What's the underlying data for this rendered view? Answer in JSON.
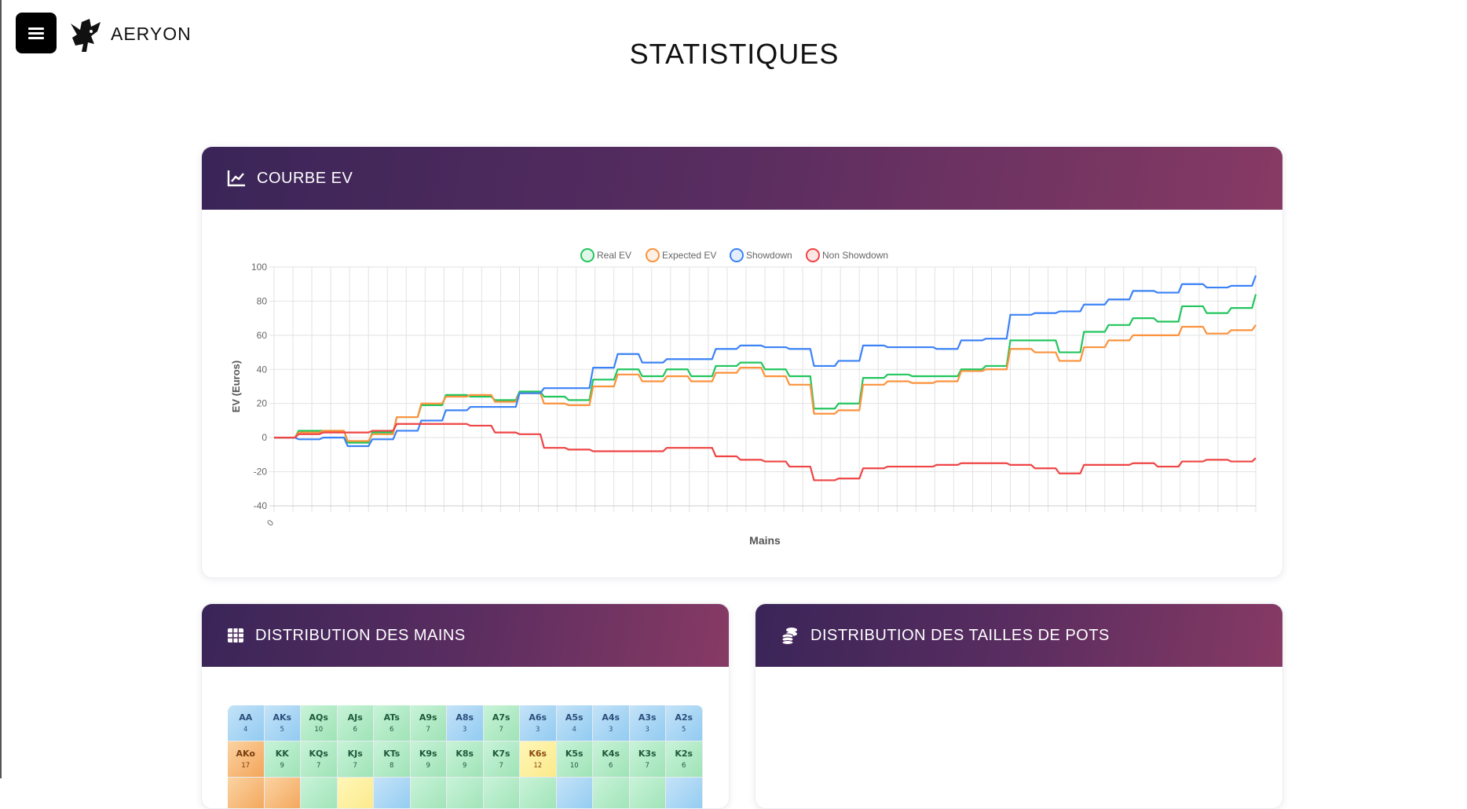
{
  "header": {
    "brand": "AERYON",
    "title": "STATISTIQUES"
  },
  "cards": {
    "ev": {
      "title": "COURBE EV",
      "icon": "chart-line-icon"
    },
    "hands": {
      "title": "DISTRIBUTION DES MAINS",
      "icon": "table-grid-icon"
    },
    "pots": {
      "title": "DISTRIBUTION DES TAILLES DE POTS",
      "icon": "coins-icon"
    }
  },
  "chart_data": {
    "type": "line",
    "xlabel": "Mains",
    "ylabel": "EV (Euros)",
    "ylim": [
      -40,
      100
    ],
    "yticks": [
      100,
      80,
      60,
      40,
      20,
      0,
      -20,
      -40
    ],
    "xtick_labels": [
      "0"
    ],
    "grid": true,
    "legend": "top-center",
    "series": [
      {
        "name": "Real EV",
        "color": "#22c55e",
        "values": [
          0,
          4,
          4,
          -3,
          3,
          12,
          19,
          25,
          24,
          22,
          27,
          24,
          22,
          34,
          40,
          36,
          40,
          36,
          42,
          44,
          40,
          36,
          17,
          20,
          35,
          37,
          36,
          36,
          40,
          42,
          57,
          57,
          50,
          62,
          66,
          70,
          68,
          77,
          73,
          76,
          84
        ]
      },
      {
        "name": "Expected EV",
        "color": "#fb923c",
        "values": [
          0,
          3,
          4,
          -2,
          2,
          12,
          20,
          24,
          25,
          21,
          26,
          20,
          19,
          30,
          37,
          33,
          36,
          33,
          38,
          41,
          36,
          31,
          14,
          16,
          31,
          33,
          32,
          33,
          39,
          40,
          52,
          50,
          45,
          53,
          57,
          60,
          60,
          65,
          61,
          63,
          66
        ]
      },
      {
        "name": "Showdown",
        "color": "#3b82f6",
        "values": [
          0,
          -1,
          0,
          -5,
          -1,
          4,
          10,
          16,
          18,
          18,
          26,
          29,
          29,
          41,
          49,
          44,
          46,
          46,
          52,
          54,
          53,
          52,
          42,
          45,
          54,
          53,
          53,
          52,
          57,
          58,
          72,
          73,
          74,
          78,
          81,
          86,
          85,
          90,
          88,
          89,
          95
        ]
      },
      {
        "name": "Non Showdown",
        "color": "#ef4444",
        "values": [
          0,
          2,
          3,
          3,
          4,
          8,
          8,
          8,
          7,
          3,
          2,
          -6,
          -7,
          -8,
          -8,
          -8,
          -6,
          -6,
          -11,
          -13,
          -14,
          -17,
          -25,
          -24,
          -18,
          -17,
          -17,
          -16,
          -15,
          -15,
          -16,
          -18,
          -21,
          -16,
          -16,
          -15,
          -17,
          -14,
          -13,
          -14,
          -12
        ]
      }
    ]
  },
  "hand_grid": {
    "rows": [
      [
        {
          "h": "AA",
          "c": "4"
        },
        {
          "h": "AKs",
          "c": "5"
        },
        {
          "h": "AQs",
          "c": "10"
        },
        {
          "h": "AJs",
          "c": "6"
        },
        {
          "h": "ATs",
          "c": "6"
        },
        {
          "h": "A9s",
          "c": "7"
        },
        {
          "h": "A8s",
          "c": "3"
        },
        {
          "h": "A7s",
          "c": "7"
        },
        {
          "h": "A6s",
          "c": "3"
        },
        {
          "h": "A5s",
          "c": "4"
        },
        {
          "h": "A4s",
          "c": "3"
        },
        {
          "h": "A3s",
          "c": "3"
        },
        {
          "h": "A2s",
          "c": "5"
        }
      ],
      [
        {
          "h": "AKo",
          "c": "17"
        },
        {
          "h": "KK",
          "c": "9"
        },
        {
          "h": "KQs",
          "c": "7"
        },
        {
          "h": "KJs",
          "c": "7"
        },
        {
          "h": "KTs",
          "c": "8"
        },
        {
          "h": "K9s",
          "c": "9"
        },
        {
          "h": "K8s",
          "c": "9"
        },
        {
          "h": "K7s",
          "c": "7"
        },
        {
          "h": "K6s",
          "c": "12"
        },
        {
          "h": "K5s",
          "c": "10"
        },
        {
          "h": "K4s",
          "c": "6"
        },
        {
          "h": "K3s",
          "c": "7"
        },
        {
          "h": "K2s",
          "c": "6"
        }
      ]
    ],
    "partial_row_levels": [
      "orange",
      "orange",
      "green",
      "yellow",
      "blue",
      "green",
      "green",
      "green",
      "green",
      "blue",
      "green",
      "green",
      "blue"
    ]
  }
}
